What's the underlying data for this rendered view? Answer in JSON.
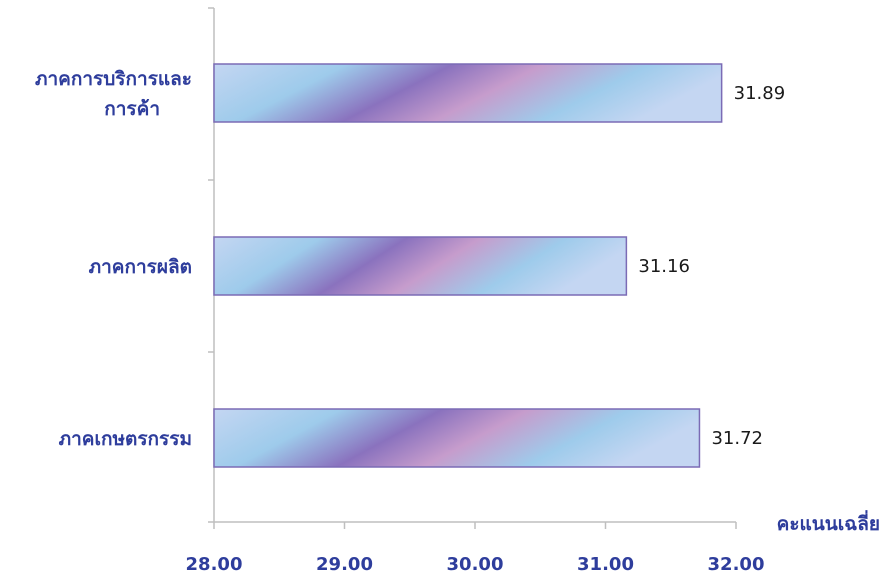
{
  "chart_data": {
    "type": "bar",
    "orientation": "horizontal",
    "categories": [
      [
        "ภาคการบริการและ",
        "การค้า"
      ],
      [
        "ภาคการผลิต"
      ],
      [
        "ภาคเกษตรกรรม"
      ]
    ],
    "values": [
      31.89,
      31.16,
      31.72
    ],
    "value_labels": [
      "31.89",
      "31.16",
      "31.72"
    ],
    "xlabel": "คะแนนเฉลี่ย",
    "ylabel": "",
    "xlim": [
      28.0,
      32.0
    ],
    "xticks": [
      "28.00",
      "29.00",
      "30.00",
      "31.00",
      "32.00"
    ],
    "grid": false,
    "legend": "none",
    "colors": {
      "bar_light": "#c4d6f2",
      "bar_sky": "#9ecbeb",
      "bar_purple": "#8a72be",
      "bar_pink": "#c69ccc",
      "bar_border": "#7b6bb5",
      "label": "#2e3d9c",
      "value": "#1a1a1a",
      "axis": "#bfbfbf"
    }
  }
}
